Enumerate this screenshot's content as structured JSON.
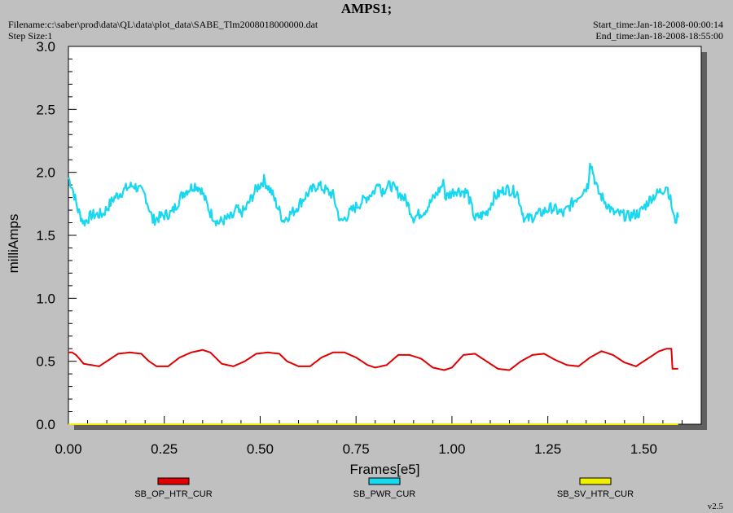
{
  "header": {
    "title": "AMPS1;",
    "filename": "Filename:c:\\saber\\prod\\data\\QL\\data\\plot_data\\SABE_Tlm2008018000000.dat",
    "step_size": "Step Size:1",
    "start_time": "Start_time:Jan-18-2008-00:00:14",
    "end_time": "End_time:Jan-18-2008-18:55:00"
  },
  "version": "v2.5",
  "colors": {
    "background": "#c0c0c0",
    "plot_area": "#ffffff",
    "shadow": "#606060"
  },
  "chart_data": {
    "type": "line",
    "title": "AMPS1;",
    "xlabel": "Frames[e5]",
    "ylabel": "milliAmps",
    "xlim": [
      0,
      1.65
    ],
    "ylim": [
      0,
      3.0
    ],
    "x_ticks": [
      "0.00",
      "0.25",
      "0.50",
      "0.75",
      "1.00",
      "1.25",
      "1.50"
    ],
    "y_ticks": [
      "0.0",
      "0.5",
      "1.0",
      "1.5",
      "2.0",
      "2.5",
      "3.0"
    ],
    "grid": false,
    "legend_position": "bottom",
    "series": [
      {
        "name": "SB_OP_HTR_CUR",
        "color": "#e00000",
        "x": [
          0,
          0.01,
          0.02,
          0.04,
          0.06,
          0.08,
          0.1,
          0.13,
          0.16,
          0.19,
          0.21,
          0.23,
          0.26,
          0.29,
          0.32,
          0.35,
          0.37,
          0.4,
          0.43,
          0.46,
          0.49,
          0.52,
          0.55,
          0.57,
          0.6,
          0.63,
          0.66,
          0.69,
          0.72,
          0.75,
          0.78,
          0.8,
          0.83,
          0.86,
          0.89,
          0.92,
          0.95,
          0.98,
          1.0,
          1.03,
          1.06,
          1.09,
          1.12,
          1.15,
          1.18,
          1.21,
          1.24,
          1.27,
          1.3,
          1.33,
          1.36,
          1.39,
          1.42,
          1.45,
          1.48,
          1.51,
          1.54,
          1.56,
          1.572,
          1.575,
          1.59
        ],
        "y": [
          0.57,
          0.57,
          0.55,
          0.48,
          0.47,
          0.46,
          0.5,
          0.56,
          0.57,
          0.56,
          0.5,
          0.46,
          0.46,
          0.53,
          0.57,
          0.59,
          0.57,
          0.48,
          0.46,
          0.5,
          0.56,
          0.57,
          0.56,
          0.5,
          0.46,
          0.46,
          0.53,
          0.57,
          0.57,
          0.53,
          0.47,
          0.45,
          0.47,
          0.55,
          0.55,
          0.52,
          0.45,
          0.43,
          0.45,
          0.55,
          0.56,
          0.5,
          0.44,
          0.43,
          0.5,
          0.55,
          0.56,
          0.51,
          0.47,
          0.46,
          0.53,
          0.58,
          0.55,
          0.49,
          0.46,
          0.52,
          0.58,
          0.6,
          0.6,
          0.44,
          0.44
        ]
      },
      {
        "name": "SB_PWR_CUR",
        "color": "#18d8f0",
        "x": [
          0,
          0.01,
          0.025,
          0.04,
          0.06,
          0.09,
          0.12,
          0.15,
          0.17,
          0.2,
          0.22,
          0.25,
          0.27,
          0.3,
          0.33,
          0.345,
          0.37,
          0.39,
          0.43,
          0.44,
          0.445,
          0.46,
          0.49,
          0.51,
          0.53,
          0.56,
          0.59,
          0.62,
          0.65,
          0.69,
          0.71,
          0.74,
          0.77,
          0.8,
          0.81,
          0.815,
          0.84,
          0.88,
          0.9,
          0.93,
          0.96,
          0.98,
          0.982,
          1.01,
          1.04,
          1.06,
          1.09,
          1.11,
          1.14,
          1.17,
          1.19,
          1.22,
          1.26,
          1.29,
          1.32,
          1.355,
          1.36,
          1.38,
          1.42,
          1.46,
          1.49,
          1.52,
          1.55,
          1.56,
          1.57,
          1.58,
          1.59
        ],
        "y": [
          1.96,
          1.88,
          1.7,
          1.6,
          1.66,
          1.67,
          1.8,
          1.87,
          1.9,
          1.82,
          1.62,
          1.66,
          1.68,
          1.84,
          1.9,
          1.87,
          1.68,
          1.6,
          1.65,
          1.72,
          1.67,
          1.7,
          1.87,
          1.94,
          1.84,
          1.62,
          1.7,
          1.82,
          1.9,
          1.82,
          1.6,
          1.7,
          1.78,
          1.86,
          1.95,
          1.85,
          1.9,
          1.78,
          1.64,
          1.7,
          1.83,
          1.92,
          1.8,
          1.86,
          1.84,
          1.63,
          1.68,
          1.8,
          1.87,
          1.84,
          1.62,
          1.66,
          1.72,
          1.67,
          1.78,
          1.9,
          2.1,
          1.85,
          1.68,
          1.65,
          1.68,
          1.8,
          1.86,
          1.9,
          1.78,
          1.62,
          1.64
        ]
      },
      {
        "name": "SB_SV_HTR_CUR",
        "color": "#f0f000",
        "x": [
          0,
          1.59
        ],
        "y": [
          0.0,
          0.0
        ]
      }
    ]
  }
}
